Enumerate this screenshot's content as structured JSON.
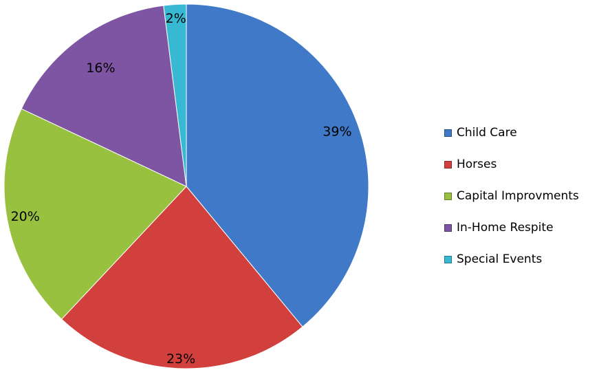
{
  "chart_data": {
    "type": "pie",
    "categories": [
      "Child Care",
      "Horses",
      "Capital Improvments",
      "In-Home Respite",
      "Special Events"
    ],
    "values": [
      39,
      23,
      20,
      16,
      2
    ],
    "labels": [
      "39%",
      "23%",
      "20%",
      "16%",
      "2%"
    ],
    "colors": [
      "#3f79c8",
      "#d1403c",
      "#98c13f",
      "#7d55a3",
      "#37b9d3"
    ],
    "legend_position": "right",
    "start_angle": "12 o'clock",
    "direction": "clockwise"
  }
}
